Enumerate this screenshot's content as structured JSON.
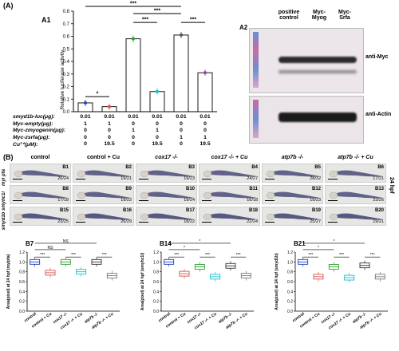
{
  "panel_A_label": "(A)",
  "panel_B_label": "(B)",
  "A1": {
    "label": "A1",
    "ylabel": "Relative luciferase activity",
    "yticks": [
      "0.0",
      "0.1",
      "0.2",
      "0.3",
      "0.4",
      "0.5",
      "0.6",
      "0.7",
      "0.8"
    ],
    "row_labels": [
      "smyd1b-luc(μg):",
      "Myc-empty(μg):",
      "Myc-zmyogenin(μg):",
      "Myc-zsrfa(μg):",
      "Cu²⁺(μM):"
    ],
    "table": [
      [
        "0.01",
        "0.01",
        "0.01",
        "0.01",
        "0.01",
        "0.01"
      ],
      [
        "1",
        "1",
        "0",
        "0",
        "0",
        "0"
      ],
      [
        "0",
        "0",
        "1",
        "1",
        "0",
        "0"
      ],
      [
        "0",
        "0",
        "0",
        "0",
        "1",
        "1"
      ],
      [
        "0",
        "19.5",
        "0",
        "19.5",
        "0",
        "19.5"
      ]
    ],
    "sig": [
      "*",
      "***",
      "***",
      "***",
      "***"
    ]
  },
  "A2": {
    "label": "A2",
    "col1": "positive",
    "col1b": "control",
    "col2": "Myc-",
    "col2b": "Myog",
    "col3": "Myc-",
    "col3b": "Srfa",
    "band1": "anti-Myc",
    "band2": "anti-Actin"
  },
  "B": {
    "columns": [
      "control",
      "control + Cu",
      "cox17 -/-",
      "cox17 -/- + Cu",
      "atp7b -/-",
      "atp7b -/- + Cu"
    ],
    "rows": [
      {
        "label": "myl pfa",
        "tags": [
          "B1",
          "B2",
          "B3",
          "B4",
          "B5",
          "B6"
        ],
        "counts": [
          "20/24",
          "19/21",
          "19/23",
          "24/27",
          "28/32",
          "17/21"
        ]
      },
      {
        "label": "smyhc1l",
        "tags": [
          "B8",
          "B9",
          "B10",
          "B11",
          "B12",
          "B13"
        ],
        "counts": [
          "17/18",
          "19/22",
          "19/24",
          "16/18",
          "19/23",
          "23/26"
        ]
      },
      {
        "label": "smyd1b",
        "tags": [
          "B15",
          "B16",
          "B17",
          "B18",
          "B19",
          "B20"
        ],
        "counts": [
          "23/25",
          "26/29",
          "18/22",
          "22/24",
          "25/27",
          "19/21"
        ]
      }
    ],
    "side_label_1": "myl pfa",
    "side_label_2": "smyd1b smyhc1l",
    "hpf": "24 hpf"
  },
  "charts": [
    {
      "title": "B7",
      "ylabel": "Area(pixel) at 24 hpf (mylpfa)",
      "sig": [
        "***",
        "NS",
        "NS",
        "***",
        "***",
        "***"
      ]
    },
    {
      "title": "B14",
      "ylabel": "Area(pixel) at 24 hpf (smyhc1l)",
      "sig": [
        "***",
        "*",
        "*",
        "***",
        "***",
        "***"
      ]
    },
    {
      "title": "B21",
      "ylabel": "Area(pixel) at 24 hpf (smyd1b)",
      "sig": [
        "***",
        "*",
        "*",
        "***",
        "***",
        "***"
      ]
    }
  ],
  "chart_xlabels": [
    "control",
    "control + Cu",
    "cox17 -/-",
    "cox17 -/- + Cu",
    "atp7b -/-",
    "atp7b -/- + Cu"
  ],
  "chart_yticks": [
    "0.0",
    "0.2",
    "0.4",
    "0.6",
    "0.8",
    "1.0",
    "1.2"
  ],
  "chart_data": [
    {
      "type": "bar",
      "title": "A1",
      "categories": [
        "1",
        "2",
        "3",
        "4",
        "5",
        "6"
      ],
      "values": [
        0.07,
        0.04,
        0.58,
        0.16,
        0.61,
        0.31
      ],
      "colors": [
        "#1f3fbf",
        "#d9534f",
        "#2ca02c",
        "#17becf",
        "#555555",
        "#8e44ad"
      ],
      "ylabel": "Relative luciferase activity",
      "ylim": [
        0,
        0.8
      ]
    },
    {
      "type": "box",
      "title": "B7",
      "categories": [
        "control",
        "control + Cu",
        "cox17 -/-",
        "cox17 -/- + Cu",
        "atp7b -/-",
        "atp7b -/- + Cu"
      ],
      "values": [
        1.0,
        0.78,
        1.0,
        0.8,
        1.0,
        0.72
      ],
      "ylim": [
        0,
        1.2
      ]
    },
    {
      "type": "box",
      "title": "B14",
      "categories": [
        "control",
        "control + Cu",
        "cox17 -/-",
        "cox17 -/- + Cu",
        "atp7b -/-",
        "atp7b -/- + Cu"
      ],
      "values": [
        1.0,
        0.76,
        0.9,
        0.7,
        0.92,
        0.72
      ],
      "ylim": [
        0,
        1.2
      ]
    },
    {
      "type": "box",
      "title": "B21",
      "categories": [
        "control",
        "control + Cu",
        "cox17 -/-",
        "cox17 -/- + Cu",
        "atp7b -/-",
        "atp7b -/- + Cu"
      ],
      "values": [
        1.0,
        0.7,
        0.9,
        0.68,
        0.93,
        0.7
      ],
      "ylim": [
        0,
        1.2
      ]
    }
  ]
}
